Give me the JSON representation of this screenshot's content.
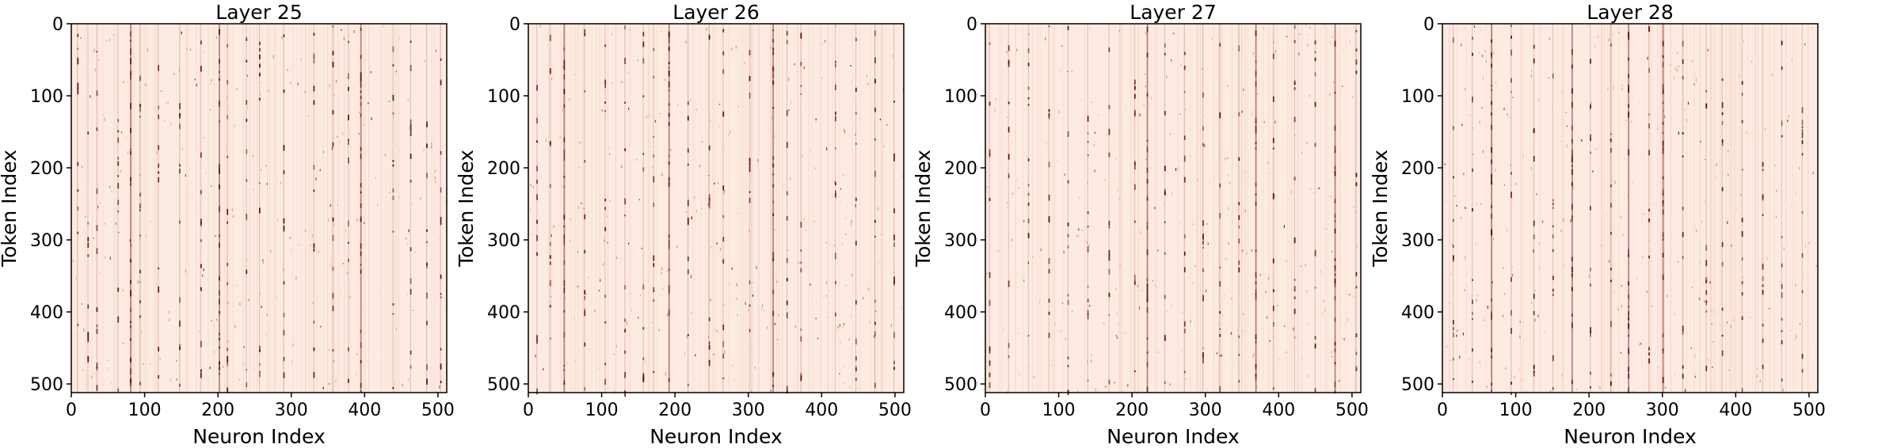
{
  "chart_data": [
    {
      "type": "heatmap",
      "title": "Layer 25",
      "xlabel": "Neuron Index",
      "ylabel": "Token Index",
      "x_ticks": [
        0,
        100,
        200,
        300,
        400,
        500
      ],
      "y_ticks": [
        0,
        100,
        200,
        300,
        400,
        500
      ],
      "xlim": [
        0,
        512
      ],
      "ylim": [
        512,
        0
      ],
      "y_inverted": true,
      "background_color": "#fdebe3",
      "prominent_columns": [
        8,
        22,
        34,
        63,
        80,
        93,
        118,
        147,
        176,
        201,
        212,
        238,
        256,
        289,
        330,
        356,
        377,
        394,
        438,
        462,
        484,
        503
      ],
      "strongest_columns": [
        80,
        201,
        394
      ]
    },
    {
      "type": "heatmap",
      "title": "Layer 26",
      "xlabel": "Neuron Index",
      "ylabel": "Token Index",
      "x_ticks": [
        0,
        100,
        200,
        300,
        400,
        500
      ],
      "y_ticks": [
        0,
        100,
        200,
        300,
        400,
        500
      ],
      "xlim": [
        0,
        512
      ],
      "ylim": [
        512,
        0
      ],
      "y_inverted": true,
      "background_color": "#fdebe3",
      "prominent_columns": [
        11,
        29,
        48,
        76,
        104,
        131,
        156,
        170,
        191,
        217,
        246,
        265,
        301,
        333,
        352,
        371,
        418,
        446,
        472,
        498
      ],
      "strongest_columns": [
        48,
        191,
        333
      ]
    },
    {
      "type": "heatmap",
      "title": "Layer 27",
      "xlabel": "Neuron Index",
      "ylabel": "Token Index",
      "x_ticks": [
        0,
        100,
        200,
        300,
        400,
        500
      ],
      "y_ticks": [
        0,
        100,
        200,
        300,
        400,
        500
      ],
      "xlim": [
        0,
        512
      ],
      "ylim": [
        512,
        0
      ],
      "y_inverted": true,
      "background_color": "#fdebe3",
      "prominent_columns": [
        5,
        31,
        58,
        86,
        112,
        139,
        168,
        203,
        220,
        244,
        271,
        296,
        319,
        345,
        368,
        392,
        421,
        449,
        476,
        505
      ],
      "strongest_columns": [
        220,
        368,
        476
      ]
    },
    {
      "type": "heatmap",
      "title": "Layer 28",
      "xlabel": "Neuron Index",
      "ylabel": "Token Index",
      "x_ticks": [
        0,
        100,
        200,
        300,
        400,
        500
      ],
      "y_ticks": [
        0,
        100,
        200,
        300,
        400,
        500
      ],
      "xlim": [
        0,
        512
      ],
      "ylim": [
        512,
        0
      ],
      "y_inverted": true,
      "background_color": "#fdebe3",
      "prominent_columns": [
        14,
        40,
        66,
        93,
        124,
        150,
        176,
        201,
        229,
        253,
        281,
        300,
        327,
        359,
        381,
        408,
        436,
        462,
        490
      ],
      "strongest_columns": [
        66,
        176,
        253,
        300
      ]
    }
  ]
}
